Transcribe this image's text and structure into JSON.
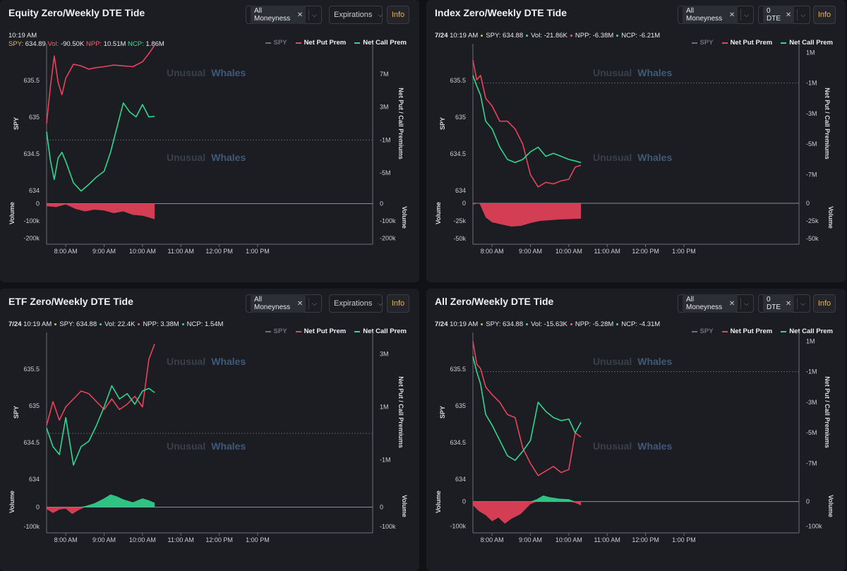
{
  "colors": {
    "put": "#e8435a",
    "call": "#31d68e",
    "spy": "#6b6f78",
    "accent": "#e8b64a"
  },
  "watermark": {
    "left": "Unusual",
    "right": "Whales"
  },
  "axis": {
    "left": "SPY",
    "right": "Net Put / Call Premiums",
    "vol": "Volume"
  },
  "legend": {
    "spy": "SPY",
    "put": "Net Put Prem",
    "call": "Net Call Prem"
  },
  "info_label": "Info",
  "time_ticks": [
    "8:00 AM",
    "9:00 AM",
    "10:00 AM",
    "11:00 AM",
    "12:00 PM",
    "1:00 PM"
  ],
  "panels": [
    {
      "title": "Equity Zero/Weekly DTE Tide",
      "moneyness": "All Moneyness",
      "expiry": "Expirations",
      "expiry_is_chip": false,
      "stats": {
        "date": "",
        "time": "10:19 AM",
        "spy_label": "SPY:",
        "spy": "634.89",
        "vol_label": "Vol:",
        "vol": "-90.50K",
        "npp_label": "NPP:",
        "npp": "10.51M",
        "ncp_label": "NCP:",
        "ncp": "1.86M",
        "two_line": true
      },
      "chart_data": {
        "type": "line",
        "title": "Equity Zero/Weekly DTE Tide",
        "xlabel": "",
        "ylabel": "SPY",
        "y2label": "Net Put / Call Premiums",
        "x_range": [
          "7:30 AM",
          "4:00 PM"
        ],
        "ylim_spy": [
          633.9,
          635.9
        ],
        "ylim_prem": [
          -8000000,
          10000000
        ],
        "ylim_vol": [
          -210000,
          10000
        ],
        "spy_ticks": [
          "635.5",
          "635",
          "634.5",
          "634"
        ],
        "prem_ticks": [
          "7M",
          "3M",
          "-1M",
          "-5M"
        ],
        "vol_ticks": [
          "0",
          "-100k",
          "-200k"
        ],
        "series": [
          {
            "name": "Net Put Prem",
            "color": "#e8435a",
            "x": [
              "7:30",
              "7:36",
              "7:42",
              "7:48",
              "7:54",
              "8:00",
              "8:12",
              "8:24",
              "8:36",
              "8:48",
              "9:00",
              "9:15",
              "9:30",
              "9:45",
              "10:00",
              "10:10",
              "10:19"
            ],
            "values": [
              1.0,
              5.5,
              9.2,
              6.0,
              4.5,
              6.5,
              8.2,
              8.0,
              7.6,
              7.8,
              7.9,
              8.1,
              8.0,
              7.9,
              8.5,
              9.5,
              10.51
            ]
          },
          {
            "name": "Net Call Prem",
            "color": "#31d68e",
            "x": [
              "7:30",
              "7:36",
              "7:42",
              "7:48",
              "7:54",
              "8:00",
              "8:12",
              "8:24",
              "8:36",
              "8:48",
              "9:00",
              "9:10",
              "9:20",
              "9:30",
              "9:40",
              "9:50",
              "10:00",
              "10:10",
              "10:19"
            ],
            "values": [
              0.0,
              -3.5,
              -5.8,
              -3.2,
              -2.5,
              -3.6,
              -6.2,
              -7.2,
              -6.4,
              -5.5,
              -4.8,
              -2.5,
              0.5,
              3.5,
              2.4,
              1.8,
              3.3,
              1.8,
              1.86
            ]
          }
        ],
        "volume": {
          "x": [
            "7:30",
            "7:45",
            "8:00",
            "8:15",
            "8:30",
            "8:45",
            "9:00",
            "9:15",
            "9:30",
            "9:45",
            "10:00",
            "10:10",
            "10:19"
          ],
          "values": [
            -15000,
            -20000,
            -5000,
            -30000,
            -45000,
            -35000,
            -40000,
            -55000,
            -45000,
            -65000,
            -70000,
            -80000,
            -90500
          ],
          "color": "#e8435a"
        },
        "zero_line": -1000000
      }
    },
    {
      "title": "Index Zero/Weekly DTE Tide",
      "moneyness": "All Moneyness",
      "expiry": "0 DTE",
      "expiry_is_chip": true,
      "stats": {
        "date": "7/24",
        "time": "10:19 AM",
        "spy_label": "SPY:",
        "spy": "634.88",
        "vol_label": "Vol:",
        "vol": "-21.86K",
        "npp_label": "NPP:",
        "npp": "-6.38M",
        "ncp_label": "NCP:",
        "ncp": "-6.21M",
        "two_line": false
      },
      "chart_data": {
        "type": "line",
        "title": "Index Zero/Weekly DTE Tide",
        "xlabel": "",
        "ylabel": "SPY",
        "y2label": "Net Put / Call Premiums",
        "x_range": [
          "7:30 AM",
          "4:00 PM"
        ],
        "ylim_spy": [
          633.9,
          635.9
        ],
        "ylim_prem": [
          -8500000,
          1200000
        ],
        "ylim_vol": [
          -52000,
          2000
        ],
        "spy_ticks": [
          "635.5",
          "635",
          "634.5",
          "634"
        ],
        "prem_ticks": [
          "1M",
          "-1M",
          "-3M",
          "-5M",
          "-7M"
        ],
        "vol_ticks": [
          "0",
          "-25k",
          "-50k"
        ],
        "series": [
          {
            "name": "Net Put Prem",
            "color": "#e8435a",
            "x": [
              "7:30",
              "7:36",
              "7:42",
              "7:50",
              "8:00",
              "8:12",
              "8:24",
              "8:36",
              "8:48",
              "9:00",
              "9:12",
              "9:24",
              "9:36",
              "9:48",
              "10:00",
              "10:10",
              "10:19"
            ],
            "values": [
              0.5,
              -0.8,
              -0.5,
              -2.0,
              -2.5,
              -3.5,
              -3.5,
              -4.0,
              -5.0,
              -7.0,
              -7.8,
              -7.5,
              -7.6,
              -7.4,
              -7.3,
              -6.5,
              -6.38
            ]
          },
          {
            "name": "Net Call Prem",
            "color": "#31d68e",
            "x": [
              "7:30",
              "7:36",
              "7:42",
              "7:50",
              "8:00",
              "8:12",
              "8:24",
              "8:36",
              "8:48",
              "9:00",
              "9:12",
              "9:24",
              "9:36",
              "9:48",
              "10:00",
              "10:10",
              "10:19"
            ],
            "values": [
              -0.5,
              -1.2,
              -1.8,
              -3.5,
              -4.0,
              -5.2,
              -6.0,
              -6.2,
              -6.0,
              -5.5,
              -5.2,
              -5.8,
              -5.6,
              -5.8,
              -6.0,
              -6.1,
              -6.21
            ]
          }
        ],
        "volume": {
          "x": [
            "7:30",
            "7:40",
            "7:50",
            "8:00",
            "8:15",
            "8:30",
            "8:45",
            "9:00",
            "9:15",
            "9:30",
            "9:45",
            "10:00",
            "10:10",
            "10:19"
          ],
          "values": [
            -2000,
            500,
            -20000,
            -27000,
            -30000,
            -33000,
            -32000,
            -28000,
            -25000,
            -24000,
            -23000,
            -22500,
            -22000,
            -21860
          ],
          "color": "#e8435a"
        },
        "zero_line": -1000000
      }
    },
    {
      "title": "ETF Zero/Weekly DTE Tide",
      "moneyness": "All Moneyness",
      "expiry": "Expirations",
      "expiry_is_chip": false,
      "stats": {
        "date": "7/24",
        "time": "10:19 AM",
        "spy_label": "SPY:",
        "spy": "634.88",
        "vol_label": "Vol:",
        "vol": "22.4K",
        "npp_label": "NPP:",
        "npp": "3.38M",
        "ncp_label": "NCP:",
        "ncp": "1.54M",
        "two_line": false
      },
      "chart_data": {
        "type": "line",
        "title": "ETF Zero/Weekly DTE Tide",
        "xlabel": "",
        "ylabel": "SPY",
        "y2label": "Net Put / Call Premiums",
        "x_range": [
          "7:30 AM",
          "4:00 PM"
        ],
        "ylim_spy": [
          633.9,
          635.9
        ],
        "ylim_prem": [
          -2000000,
          3600000
        ],
        "ylim_vol": [
          -110000,
          85000
        ],
        "spy_ticks": [
          "635.5",
          "635",
          "634.5",
          "634"
        ],
        "prem_ticks": [
          "3M",
          "1M",
          "-1M"
        ],
        "vol_ticks": [
          "0",
          "-100k"
        ],
        "series": [
          {
            "name": "Net Put Prem",
            "color": "#e8435a",
            "x": [
              "7:30",
              "7:40",
              "7:50",
              "8:00",
              "8:12",
              "8:24",
              "8:36",
              "8:48",
              "9:00",
              "9:12",
              "9:24",
              "9:36",
              "9:48",
              "10:00",
              "10:10",
              "10:19"
            ],
            "values": [
              0.3,
              1.2,
              0.5,
              1.0,
              1.3,
              1.6,
              1.5,
              1.2,
              0.9,
              1.3,
              0.9,
              1.1,
              1.4,
              1.0,
              2.8,
              3.38
            ]
          },
          {
            "name": "Net Call Prem",
            "color": "#31d68e",
            "x": [
              "7:30",
              "7:40",
              "7:50",
              "8:00",
              "8:12",
              "8:24",
              "8:36",
              "8:48",
              "9:00",
              "9:12",
              "9:24",
              "9:36",
              "9:48",
              "10:00",
              "10:10",
              "10:19"
            ],
            "values": [
              0.2,
              -0.5,
              -0.8,
              0.6,
              -1.2,
              -0.5,
              -0.3,
              0.3,
              1.0,
              1.8,
              1.3,
              1.5,
              1.1,
              1.6,
              1.7,
              1.54
            ]
          }
        ],
        "volume": {
          "x": [
            "7:30",
            "7:40",
            "7:50",
            "8:00",
            "8:10",
            "8:20",
            "8:30",
            "8:45",
            "9:00",
            "9:10",
            "9:20",
            "9:30",
            "9:45",
            "10:00",
            "10:10",
            "10:19"
          ],
          "values": [
            -10000,
            -30000,
            -12000,
            -8000,
            -35000,
            -15000,
            5000,
            20000,
            45000,
            65000,
            55000,
            40000,
            25000,
            45000,
            35000,
            22400
          ],
          "colorPos": "#31d68e",
          "colorNeg": "#e8435a"
        },
        "zero_line": 0
      }
    },
    {
      "title": "All Zero/Weekly DTE Tide",
      "moneyness": "All Moneyness",
      "expiry": "0 DTE",
      "expiry_is_chip": true,
      "stats": {
        "date": "7/24",
        "time": "10:19 AM",
        "spy_label": "SPY:",
        "spy": "634.88",
        "vol_label": "Vol:",
        "vol": "-15.63K",
        "npp_label": "NPP:",
        "npp": "-5.28M",
        "ncp_label": "NCP:",
        "ncp": "-4.31M",
        "two_line": false
      },
      "chart_data": {
        "type": "line",
        "title": "All Zero/Weekly DTE Tide",
        "xlabel": "",
        "ylabel": "SPY",
        "y2label": "Net Put / Call Premiums",
        "x_range": [
          "7:30 AM",
          "4:00 PM"
        ],
        "ylim_spy": [
          633.9,
          635.9
        ],
        "ylim_prem": [
          -8500000,
          1200000
        ],
        "ylim_vol": [
          -110000,
          45000
        ],
        "spy_ticks": [
          "635.5",
          "635",
          "634.5",
          "634"
        ],
        "prem_ticks": [
          "1M",
          "-1M",
          "-3M",
          "-5M",
          "-7M"
        ],
        "vol_ticks": [
          "0",
          "-100k"
        ],
        "series": [
          {
            "name": "Net Put Prem",
            "color": "#e8435a",
            "x": [
              "7:30",
              "7:36",
              "7:42",
              "7:50",
              "8:00",
              "8:12",
              "8:24",
              "8:36",
              "8:48",
              "9:00",
              "9:12",
              "9:24",
              "9:36",
              "9:48",
              "10:00",
              "10:10",
              "10:19"
            ],
            "values": [
              1.0,
              -0.5,
              -0.8,
              -2.0,
              -2.5,
              -3.0,
              -3.8,
              -4.0,
              -6.0,
              -7.0,
              -7.8,
              -7.5,
              -7.2,
              -7.6,
              -7.4,
              -5.0,
              -5.28
            ]
          },
          {
            "name": "Net Call Prem",
            "color": "#31d68e",
            "x": [
              "7:30",
              "7:36",
              "7:42",
              "7:50",
              "8:00",
              "8:12",
              "8:24",
              "8:36",
              "8:48",
              "9:00",
              "9:12",
              "9:24",
              "9:36",
              "9:48",
              "10:00",
              "10:10",
              "10:19"
            ],
            "values": [
              0.0,
              -1.0,
              -1.8,
              -3.8,
              -4.5,
              -5.5,
              -6.5,
              -6.8,
              -6.2,
              -5.5,
              -3.0,
              -3.6,
              -4.0,
              -4.2,
              -4.1,
              -5.0,
              -4.31
            ]
          }
        ],
        "volume": {
          "x": [
            "7:30",
            "7:40",
            "7:50",
            "8:00",
            "8:10",
            "8:20",
            "8:30",
            "8:45",
            "9:00",
            "9:10",
            "9:20",
            "9:30",
            "9:45",
            "10:00",
            "10:10",
            "10:19"
          ],
          "values": [
            -15000,
            -40000,
            -55000,
            -80000,
            -65000,
            -90000,
            -70000,
            -50000,
            -10000,
            10000,
            25000,
            18000,
            12000,
            10000,
            -5000,
            -15630
          ],
          "colorPos": "#31d68e",
          "colorNeg": "#e8435a"
        },
        "zero_line": -1000000
      }
    }
  ]
}
